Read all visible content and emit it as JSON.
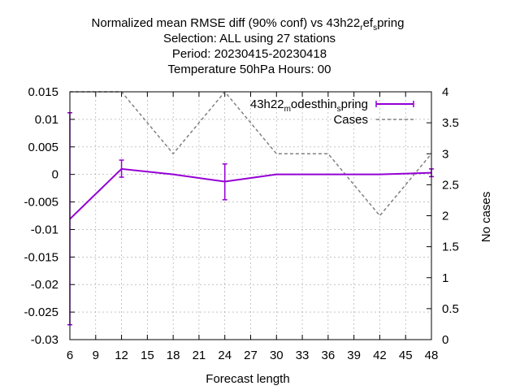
{
  "chart_data": {
    "type": "line",
    "title_lines": [
      "Normalized mean RMSE diff (90% conf) vs 43h22",
      "Selection: ALL using    27 stations",
      "Period: 20230415-20230418",
      "Temperature 50hPa   Hours:  00"
    ],
    "title_first_line_parts": {
      "main": "Normalized mean RMSE diff (90% conf) vs 43h22",
      "sub1": "r",
      "mid": "ef",
      "sub2": "s",
      "tail": "pring"
    },
    "xlabel": "Forecast length",
    "ylabel": "",
    "y2label": "No cases",
    "xlim": [
      6,
      48
    ],
    "ylim": [
      -0.03,
      0.015
    ],
    "y2lim": [
      0,
      4
    ],
    "x_ticks": [
      "6",
      "9",
      "12",
      "15",
      "18",
      "21",
      "24",
      "27",
      "30",
      "33",
      "36",
      "39",
      "42",
      "45",
      "48"
    ],
    "y_ticks": [
      "0.015",
      "0.01",
      "0.005",
      "0",
      "-0.005",
      "-0.01",
      "-0.015",
      "-0.02",
      "-0.025",
      "-0.03"
    ],
    "y2_ticks": [
      "4",
      "3.5",
      "3",
      "2.5",
      "2",
      "1.5",
      "1",
      "0.5",
      "0"
    ],
    "grid": true,
    "legend_placement": "top-right",
    "series": [
      {
        "name": "43h22_modesthin_spring",
        "legend_parts": {
          "main": "43h22",
          "sub1": "m",
          "mid": "odesthin",
          "sub2": "s",
          "tail": "pring"
        },
        "color": "#9400d3",
        "axis": "y1",
        "x": [
          6,
          12,
          18,
          24,
          30,
          36,
          42,
          48
        ],
        "y": [
          -0.0081,
          0.001,
          0.0,
          -0.0013,
          0.0,
          0.0,
          0.0,
          0.0003
        ],
        "err_low": [
          -0.0273,
          -0.0005,
          null,
          -0.0046,
          null,
          null,
          null,
          -0.0004
        ],
        "err_high": [
          0.0112,
          0.0026,
          null,
          0.0019,
          null,
          null,
          null,
          0.001
        ]
      },
      {
        "name": "Cases",
        "color": "#808080",
        "axis": "y2",
        "dashed": true,
        "x": [
          6,
          12,
          18,
          24,
          30,
          36,
          42,
          48
        ],
        "y": [
          4,
          4,
          3,
          4,
          3,
          3,
          2,
          3
        ]
      }
    ]
  }
}
